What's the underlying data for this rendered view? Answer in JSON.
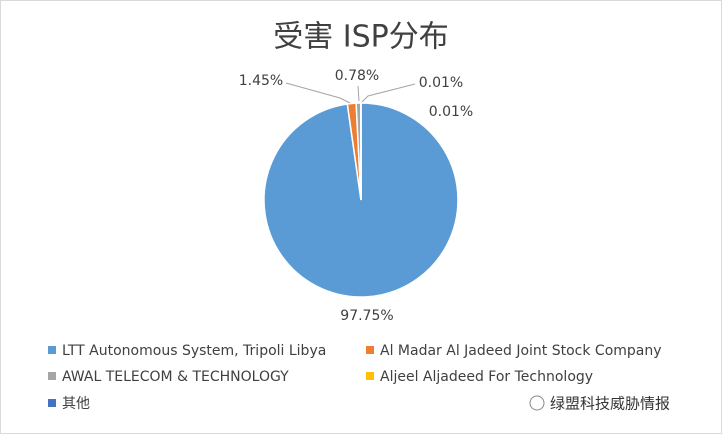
{
  "chart_data": {
    "type": "pie",
    "title": "受害 ISP分布",
    "categories": [
      "LTT Autonomous System, Tripoli Libya",
      "Al Madar Al Jadeed Joint Stock Company",
      "AWAL TELECOM & TECHNOLOGY",
      "Aljeel Aljadeed For Technology",
      "其他"
    ],
    "values": [
      97.75,
      1.45,
      0.78,
      0.01,
      0.01
    ],
    "value_labels": [
      "97.75%",
      "1.45%",
      "0.78%",
      "0.01%",
      "0.01%"
    ],
    "colors": [
      "#5b9bd5",
      "#ed7d31",
      "#a5a5a5",
      "#ffc000",
      "#4472c4"
    ],
    "legend": "bottom"
  },
  "watermark": "绿盟科技威胁情报"
}
